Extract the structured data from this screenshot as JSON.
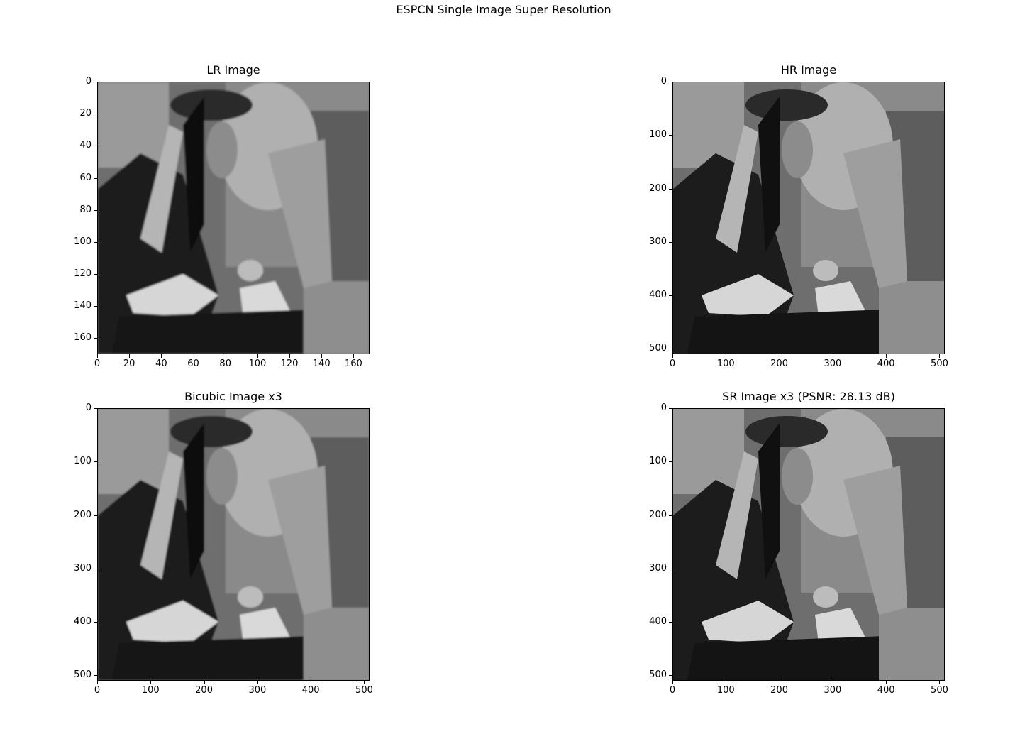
{
  "figure": {
    "suptitle": "ESPCN Single Image Super Resolution"
  },
  "chart_data": [
    {
      "type": "image",
      "title": "LR Image",
      "image_size": [
        170,
        170
      ],
      "xlim": [
        0,
        170
      ],
      "ylim": [
        170,
        0
      ],
      "xticks": [
        0,
        20,
        40,
        60,
        80,
        100,
        120,
        140,
        160
      ],
      "yticks": [
        0,
        20,
        40,
        60,
        80,
        100,
        120,
        140,
        160
      ],
      "colormap": "gray"
    },
    {
      "type": "image",
      "title": "HR Image",
      "image_size": [
        510,
        510
      ],
      "xlim": [
        0,
        510
      ],
      "ylim": [
        510,
        0
      ],
      "xticks": [
        0,
        100,
        200,
        300,
        400,
        500
      ],
      "yticks": [
        0,
        100,
        200,
        300,
        400,
        500
      ],
      "colormap": "gray"
    },
    {
      "type": "image",
      "title": "Bicubic Image x3",
      "image_size": [
        510,
        510
      ],
      "xlim": [
        0,
        510
      ],
      "ylim": [
        510,
        0
      ],
      "xticks": [
        0,
        100,
        200,
        300,
        400,
        500
      ],
      "yticks": [
        0,
        100,
        200,
        300,
        400,
        500
      ],
      "colormap": "gray"
    },
    {
      "type": "image",
      "title": "SR Image x3 (PSNR: 28.13 dB)",
      "image_size": [
        510,
        510
      ],
      "xlim": [
        0,
        510
      ],
      "ylim": [
        510,
        0
      ],
      "xticks": [
        0,
        100,
        200,
        300,
        400,
        500
      ],
      "yticks": [
        0,
        100,
        200,
        300,
        400,
        500
      ],
      "colormap": "gray"
    }
  ]
}
